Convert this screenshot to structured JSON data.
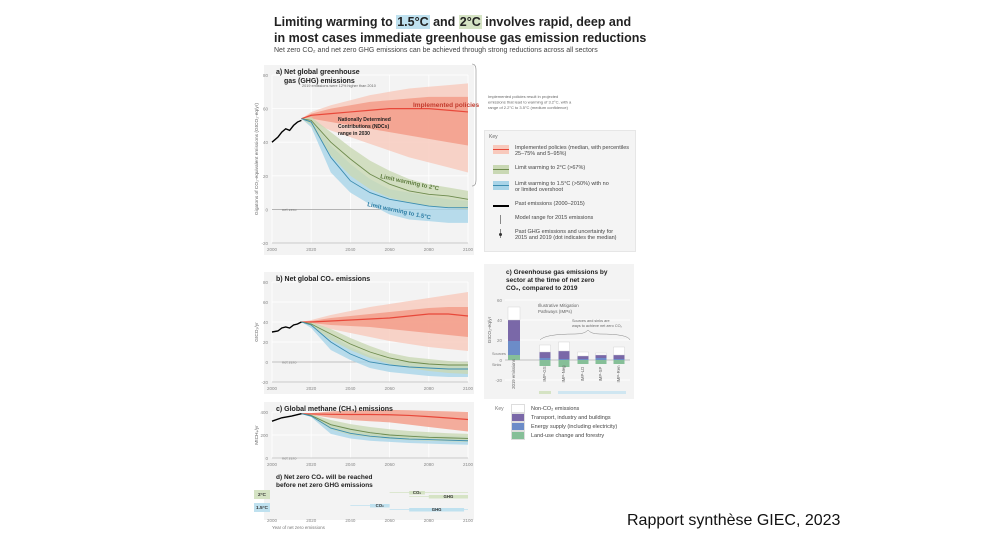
{
  "title": {
    "line1_pre": "Limiting warming to ",
    "hl1": "1.5°C",
    "mid": " and ",
    "hl2": "2°C",
    "line1_post": " involves rapid, deep and",
    "line2": "in most cases immediate greenhouse gas emission reductions"
  },
  "subtitle": "Net zero CO₂ and net zero GHG emissions can be achieved through strong reductions across all sectors",
  "credit": "Rapport synthèse GIEC, 2023",
  "colors": {
    "implemented": "#e8483a",
    "implemented_inner": "#f29a86",
    "implemented_outer": "#f8c9bc",
    "two_deg": "#6e8b4e",
    "two_deg_band": "#c9d8b4",
    "one_five": "#3c8db0",
    "one_five_band": "#a8d4e8",
    "past": "#000000",
    "non_co2": "#ffffff",
    "transport": "#7a68a8",
    "energy": "#6c8cc8",
    "landuse": "#86bf98"
  },
  "key": {
    "heading": "Key",
    "items": [
      {
        "label": "Implemented policies (median, with percentiles 25–75% and 5–95%)"
      },
      {
        "label": "Limit warming to 2°C (>67%)"
      },
      {
        "label": "Limit warming to 1.5°C (>50%) with no or limited overshoot"
      },
      {
        "label": "Past emissions (2000–2015)"
      },
      {
        "label": "Model range for 2015 emissions"
      },
      {
        "label": "Past GHG emissions and uncertainty for 2015 and 2019 (dot indicates the median)"
      }
    ]
  },
  "annotations": {
    "ar6_2019": "2019 emissions were 12% higher than 2010",
    "ndc": "Nationally Determined Contributions (NDCs) range in 2030",
    "implemented_label": "Implemented policies",
    "implemented_note": "Implemented policies result in projected emissions that lead to warming of 3.2°C, with a range of 2.2°C to 3.5°C (medium confidence)",
    "limit2": "Limit warming to 2°C",
    "limit15": "Limit warming to 1.5°C",
    "net_zero": "net zero"
  },
  "chart_data": [
    {
      "id": "a",
      "type": "area",
      "title": "a) Net global greenhouse gas (GHG) emissions",
      "ylabel": "Gigatons of CO₂-equivalent emissions (GtCO₂-eq/yr)",
      "xlabel": "",
      "xlim": [
        2000,
        2100
      ],
      "ylim": [
        -20,
        80
      ],
      "xticks": [
        2000,
        2020,
        2040,
        2060,
        2080,
        2100
      ],
      "yticks": [
        -20,
        0,
        20,
        40,
        60,
        80
      ],
      "past": {
        "x": [
          2000,
          2003,
          2005,
          2007,
          2009,
          2011,
          2013,
          2015
        ],
        "y": [
          40,
          43,
          46,
          48,
          47,
          50,
          52,
          53
        ]
      },
      "series": [
        {
          "name": "Implemented policies",
          "x": [
            2015,
            2020,
            2030,
            2040,
            2050,
            2060,
            2070,
            2080,
            2090,
            2100
          ],
          "median": [
            54,
            56,
            57,
            58,
            59,
            60,
            60,
            60,
            59,
            58
          ],
          "p25": [
            54,
            54,
            52,
            50,
            48,
            46,
            44,
            42,
            40,
            38
          ],
          "p75": [
            54,
            57,
            60,
            62,
            64,
            65,
            66,
            67,
            67,
            67
          ],
          "p5": [
            54,
            52,
            47,
            43,
            39,
            35,
            31,
            28,
            25,
            22
          ],
          "p95": [
            54,
            58,
            62,
            65,
            68,
            70,
            72,
            73,
            74,
            75
          ]
        },
        {
          "name": "Limit warming to 2°C",
          "x": [
            2015,
            2020,
            2030,
            2040,
            2050,
            2060,
            2070,
            2080,
            2090,
            2100
          ],
          "median": [
            54,
            53,
            40,
            30,
            21,
            15,
            11,
            9,
            8,
            6
          ],
          "low": [
            54,
            50,
            32,
            20,
            12,
            7,
            4,
            2,
            1,
            0
          ],
          "high": [
            54,
            55,
            46,
            37,
            29,
            23,
            18,
            15,
            13,
            11
          ]
        },
        {
          "name": "Limit warming to 1.5°C",
          "x": [
            2015,
            2020,
            2030,
            2040,
            2050,
            2060,
            2070,
            2080,
            2090,
            2100
          ],
          "median": [
            54,
            52,
            31,
            17,
            10,
            6,
            4,
            2,
            1,
            1
          ],
          "low": [
            54,
            49,
            22,
            10,
            3,
            -3,
            -6,
            -7,
            -8,
            -8
          ],
          "high": [
            54,
            54,
            38,
            27,
            18,
            12,
            10,
            8,
            6,
            5
          ]
        }
      ]
    },
    {
      "id": "b",
      "type": "area",
      "title": "b) Net global CO₂ emissions",
      "ylabel": "GtCO₂/yr",
      "xlim": [
        2000,
        2100
      ],
      "ylim": [
        -20,
        80
      ],
      "xticks": [
        2000,
        2020,
        2040,
        2060,
        2080,
        2100
      ],
      "yticks": [
        -20,
        0,
        20,
        40,
        60,
        80
      ],
      "past": {
        "x": [
          2000,
          2003,
          2005,
          2007,
          2009,
          2011,
          2013,
          2015
        ],
        "y": [
          30,
          31,
          34,
          35,
          34,
          37,
          38,
          40
        ]
      },
      "series": [
        {
          "name": "Implemented policies",
          "x": [
            2015,
            2020,
            2030,
            2040,
            2050,
            2060,
            2070,
            2080,
            2090,
            2100
          ],
          "median": [
            40,
            40,
            41,
            42,
            43,
            44,
            46,
            48,
            48,
            46
          ],
          "p25": [
            40,
            39,
            37,
            36,
            35,
            33,
            31,
            29,
            27,
            25
          ],
          "p75": [
            40,
            41,
            44,
            46,
            48,
            50,
            52,
            54,
            55,
            55
          ],
          "p5": [
            40,
            38,
            33,
            29,
            25,
            21,
            18,
            15,
            13,
            11
          ],
          "p95": [
            40,
            42,
            47,
            51,
            55,
            58,
            61,
            64,
            67,
            70
          ]
        },
        {
          "name": "Limit warming to 2°C",
          "x": [
            2015,
            2020,
            2030,
            2040,
            2050,
            2060,
            2070,
            2080,
            2090,
            2100
          ],
          "median": [
            40,
            38,
            28,
            18,
            10,
            4,
            0,
            -2,
            -3,
            -3
          ],
          "low": [
            40,
            36,
            22,
            12,
            4,
            -2,
            -6,
            -9,
            -11,
            -12
          ],
          "high": [
            40,
            40,
            33,
            24,
            16,
            9,
            5,
            3,
            1,
            0
          ]
        },
        {
          "name": "Limit warming to 1.5°C",
          "x": [
            2015,
            2020,
            2030,
            2040,
            2050,
            2060,
            2070,
            2080,
            2090,
            2100
          ],
          "median": [
            40,
            37,
            20,
            8,
            0,
            -3,
            -5,
            -6,
            -7,
            -7
          ],
          "low": [
            40,
            34,
            12,
            2,
            -6,
            -10,
            -12,
            -14,
            -15,
            -15
          ],
          "high": [
            40,
            39,
            27,
            15,
            6,
            2,
            0,
            -2,
            -3,
            -4
          ]
        }
      ]
    },
    {
      "id": "c",
      "type": "area",
      "title": "c) Global methane (CH₄) emissions",
      "ylabel": "MtCH₄/yr",
      "xlim": [
        2000,
        2100
      ],
      "ylim": [
        0,
        400
      ],
      "xticks": [
        2000,
        2020,
        2040,
        2060,
        2080,
        2100
      ],
      "yticks": [
        0,
        200,
        400
      ],
      "past": {
        "x": [
          2000,
          2005,
          2010,
          2015
        ],
        "y": [
          320,
          350,
          365,
          385
        ]
      },
      "series": [
        {
          "name": "Implemented policies",
          "x": [
            2015,
            2020,
            2030,
            2040,
            2050,
            2060,
            2070,
            2080,
            2090,
            2100
          ],
          "median": [
            385,
            383,
            380,
            378,
            378,
            376,
            370,
            360,
            348,
            335
          ],
          "low": [
            385,
            375,
            350,
            330,
            320,
            310,
            290,
            270,
            250,
            230
          ],
          "high": [
            385,
            390,
            405,
            412,
            415,
            418,
            415,
            410,
            405,
            400
          ]
        },
        {
          "name": "Limit warming to 2°C",
          "x": [
            2015,
            2020,
            2030,
            2040,
            2050,
            2060,
            2070,
            2080,
            2090,
            2100
          ],
          "median": [
            385,
            370,
            290,
            250,
            220,
            200,
            190,
            180,
            175,
            170
          ],
          "low": [
            385,
            360,
            250,
            200,
            180,
            165,
            155,
            150,
            145,
            140
          ],
          "high": [
            385,
            380,
            330,
            295,
            270,
            250,
            235,
            225,
            215,
            210
          ]
        },
        {
          "name": "Limit warming to 1.5°C",
          "x": [
            2015,
            2020,
            2030,
            2040,
            2050,
            2060,
            2070,
            2080,
            2090,
            2100
          ],
          "median": [
            385,
            365,
            260,
            215,
            190,
            175,
            165,
            160,
            155,
            150
          ],
          "low": [
            385,
            355,
            210,
            170,
            150,
            140,
            130,
            125,
            120,
            115
          ],
          "high": [
            385,
            378,
            300,
            260,
            230,
            210,
            200,
            195,
            190,
            185
          ]
        }
      ]
    },
    {
      "id": "c-sector",
      "type": "bar",
      "title": "c) Greenhouse gas emissions by sector at the time of net zero CO₂, compared to 2019",
      "ylabel": "GtCO₂-eq/yr",
      "ylim": [
        -20,
        60
      ],
      "yticks": [
        -20,
        0,
        20,
        40,
        60
      ],
      "subtitle": "Illustrative Mitigation Pathways (IMPs)",
      "bracket_note": "Sources and sinks are ways to achieve net zero CO₂",
      "categories": [
        "2019 emissions",
        "IMP-GS",
        "IMP-Neg",
        "IMP-LD",
        "IMP-SP",
        "IMP-Ren"
      ],
      "series": [
        {
          "name": "Land-use change and forestry",
          "values": [
            5,
            -6,
            -7,
            -4,
            -4,
            -4
          ]
        },
        {
          "name": "Energy supply (including electricity)",
          "values": [
            14,
            2,
            1,
            1,
            2,
            1
          ]
        },
        {
          "name": "Transport, industry and buildings",
          "values": [
            21,
            6,
            8,
            3,
            3,
            4
          ]
        },
        {
          "name": "Non-CO₂ emissions",
          "values": [
            13,
            7,
            9,
            4,
            2,
            8
          ]
        }
      ],
      "annotations": [
        "Sources",
        "Sinks",
        "net zero"
      ]
    },
    {
      "id": "d",
      "type": "bar",
      "title": "d) Net zero CO₂ will be reached before net zero GHG emissions",
      "xlabel": "Year of net zero emissions",
      "xlim": [
        2000,
        2100
      ],
      "xticks": [
        2000,
        2020,
        2040,
        2060,
        2080,
        2100
      ],
      "rows": [
        {
          "name": "2°C",
          "bars": [
            {
              "label": "CO₂",
              "from": 2060,
              "to": 2100,
              "iqr": [
                2070,
                2078
              ]
            },
            {
              "label": "GHG",
              "from": 2070,
              "to": 2100,
              "iqr": [
                2080,
                2100
              ]
            }
          ]
        },
        {
          "name": "1.5°C",
          "bars": [
            {
              "label": "CO₂",
              "from": 2040,
              "to": 2060,
              "iqr": [
                2050,
                2060
              ]
            },
            {
              "label": "GHG",
              "from": 2060,
              "to": 2100,
              "iqr": [
                2070,
                2098
              ]
            }
          ]
        }
      ]
    }
  ]
}
